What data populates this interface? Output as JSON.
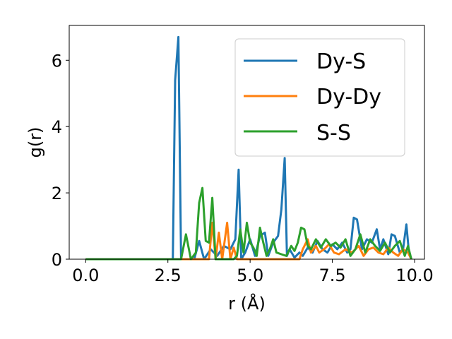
{
  "chart_data": {
    "type": "line",
    "xlabel": "r (Å)",
    "ylabel": "g(r)",
    "xlim": [
      -0.5,
      10.3
    ],
    "ylim": [
      0,
      7.05
    ],
    "xticks": [
      0,
      2.5,
      5,
      7.5,
      10
    ],
    "xtick_labels": [
      "0.0",
      "2.5",
      "5.0",
      "7.5",
      "10.0"
    ],
    "yticks": [
      0,
      2,
      4,
      6
    ],
    "ytick_labels": [
      "0",
      "2",
      "4",
      "6"
    ],
    "grid": false,
    "legend_position": "top-right",
    "series": [
      {
        "name": "Dy-S",
        "color": "#1f77b4",
        "x": [
          0,
          0.5,
          1,
          1.5,
          2,
          2.5,
          2.65,
          2.72,
          2.82,
          2.9,
          3.05,
          3.3,
          3.45,
          3.6,
          3.8,
          4.0,
          4.2,
          4.4,
          4.55,
          4.65,
          4.73,
          4.85,
          5.0,
          5.15,
          5.3,
          5.45,
          5.55,
          5.7,
          5.85,
          5.95,
          6.05,
          6.12,
          6.2,
          6.35,
          6.5,
          6.6,
          6.75,
          6.9,
          7.05,
          7.2,
          7.35,
          7.5,
          7.65,
          7.8,
          7.95,
          8.05,
          8.15,
          8.25,
          8.4,
          8.55,
          8.7,
          8.85,
          8.95,
          9.05,
          9.2,
          9.3,
          9.4,
          9.55,
          9.65,
          9.75,
          9.82,
          9.9
        ],
        "values": [
          0,
          0,
          0,
          0,
          0,
          0,
          0,
          5.4,
          6.7,
          0,
          0,
          0,
          0.55,
          0,
          0.3,
          0.1,
          0.4,
          0.3,
          0.6,
          2.7,
          0,
          0.2,
          0.6,
          0.1,
          0.7,
          0.8,
          0.1,
          0.5,
          0.7,
          1.5,
          3.05,
          0.1,
          0.3,
          0.05,
          0.2,
          0.1,
          0.35,
          0.2,
          0.55,
          0.3,
          0.2,
          0.45,
          0.3,
          0.5,
          0.2,
          0.3,
          1.25,
          1.2,
          0.3,
          0.6,
          0.5,
          0.9,
          0.3,
          0.6,
          0.15,
          0.75,
          0.7,
          0.2,
          0.3,
          1.05,
          0.3,
          0
        ]
      },
      {
        "name": "Dy-Dy",
        "color": "#ff7f0e",
        "x": [
          0,
          0.5,
          1,
          1.5,
          2,
          2.5,
          3.0,
          3.5,
          3.6,
          3.75,
          3.85,
          3.95,
          4.05,
          4.15,
          4.3,
          4.4,
          4.5,
          4.6,
          4.7,
          5.0,
          5.5,
          6.0,
          6.5,
          6.6,
          6.75,
          6.85,
          7.0,
          7.1,
          7.25,
          7.4,
          7.55,
          7.7,
          7.9,
          8.1,
          8.3,
          8.45,
          8.6,
          8.75,
          8.9,
          9.05,
          9.2,
          9.35,
          9.5,
          9.65,
          9.8,
          9.9
        ],
        "values": [
          0,
          0,
          0,
          0,
          0,
          0,
          0,
          0,
          0,
          0,
          1.1,
          0,
          0.8,
          0,
          1.1,
          0,
          0.35,
          0,
          0,
          0,
          0,
          0,
          0,
          0.3,
          0.6,
          0.2,
          0.4,
          0.2,
          0.3,
          0.45,
          0.2,
          0.15,
          0.3,
          0.2,
          0.4,
          0.1,
          0.3,
          0.35,
          0.2,
          0.15,
          0.35,
          0.2,
          0.1,
          0.3,
          0.2,
          0
        ]
      },
      {
        "name": "S-S",
        "color": "#2ca02c",
        "x": [
          0,
          0.5,
          1,
          1.5,
          2,
          2.5,
          2.9,
          3.05,
          3.2,
          3.35,
          3.45,
          3.55,
          3.65,
          3.75,
          3.85,
          3.95,
          4.05,
          4.2,
          4.35,
          4.5,
          4.6,
          4.7,
          4.8,
          4.9,
          5.0,
          5.1,
          5.2,
          5.3,
          5.4,
          5.5,
          5.6,
          5.7,
          5.8,
          5.95,
          6.1,
          6.25,
          6.35,
          6.45,
          6.55,
          6.65,
          6.75,
          6.85,
          7.0,
          7.15,
          7.3,
          7.45,
          7.6,
          7.75,
          7.9,
          8.05,
          8.2,
          8.35,
          8.5,
          8.65,
          8.8,
          8.95,
          9.1,
          9.25,
          9.4,
          9.55,
          9.7,
          9.8,
          9.9
        ],
        "values": [
          0,
          0,
          0,
          0,
          0,
          0,
          0,
          0.75,
          0,
          0.2,
          1.7,
          2.15,
          0.55,
          0.5,
          1.85,
          0,
          0,
          0,
          0,
          0,
          0.1,
          0.9,
          0.2,
          1.1,
          0.5,
          0.35,
          0.1,
          0.95,
          0.5,
          0.1,
          0.3,
          0.6,
          0.2,
          0.15,
          0.1,
          0.4,
          0.25,
          0.5,
          0.95,
          0.9,
          0.4,
          0.3,
          0.6,
          0.35,
          0.6,
          0.4,
          0.5,
          0.35,
          0.6,
          0.1,
          0.3,
          0.75,
          0.2,
          0.6,
          0.4,
          0.25,
          0.5,
          0.2,
          0.4,
          0.55,
          0.1,
          0.4,
          0
        ]
      }
    ]
  }
}
